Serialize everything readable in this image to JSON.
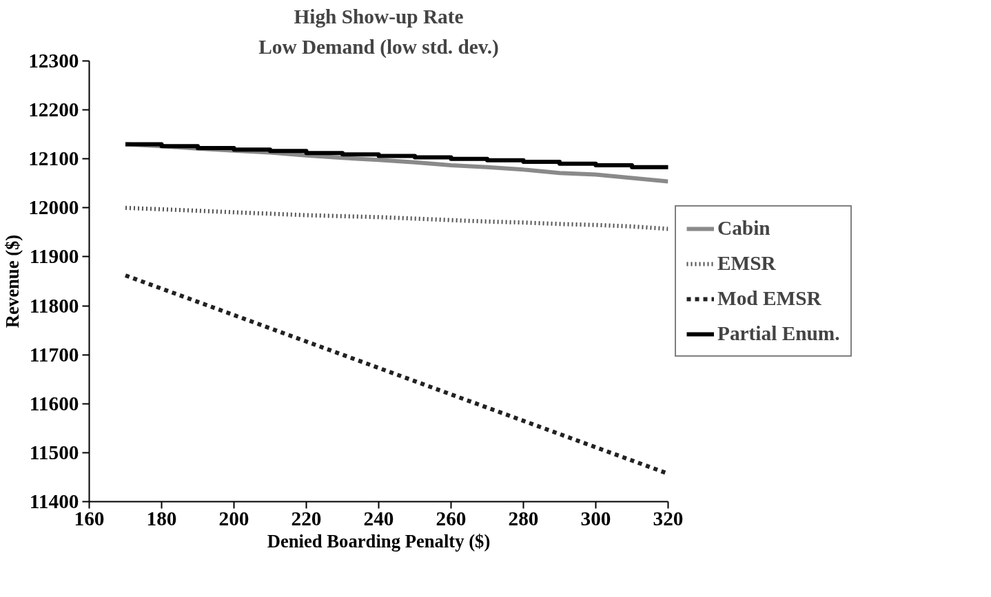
{
  "chart_data": {
    "type": "line",
    "title": "High Show-up Rate",
    "subtitle": "Low Demand (low std. dev.)",
    "xlabel": "Denied Boarding Penalty ($)",
    "ylabel": "Revenue ($)",
    "x": [
      170,
      180,
      190,
      200,
      210,
      220,
      230,
      240,
      250,
      260,
      270,
      280,
      290,
      300,
      310,
      320
    ],
    "series": [
      {
        "name": "Cabin",
        "color": "#8a8a8a",
        "line_style": "solid",
        "values": [
          12130,
          12126,
          12121,
          12117,
          12113,
          12107,
          12102,
          12098,
          12093,
          12087,
          12083,
          12078,
          12071,
          12068,
          12061,
          12054
        ]
      },
      {
        "name": "EMSR",
        "color": "#555555",
        "line_style": "dotted",
        "values": [
          12000,
          11997,
          11994,
          11991,
          11988,
          11985,
          11983,
          11981,
          11978,
          11975,
          11972,
          11970,
          11967,
          11965,
          11962,
          11957
        ]
      },
      {
        "name": "Mod EMSR",
        "color": "#222222",
        "line_style": "dashed",
        "values": [
          11862,
          11835,
          11808,
          11781,
          11754,
          11727,
          11700,
          11673,
          11646,
          11619,
          11592,
          11565,
          11538,
          11511,
          11484,
          11457
        ]
      },
      {
        "name": "Partial Enum.",
        "type": "step",
        "color": "#000000",
        "line_style": "solid",
        "values": [
          12130,
          12126,
          12122,
          12119,
          12116,
          12112,
          12109,
          12106,
          12103,
          12100,
          12097,
          12094,
          12090,
          12087,
          12083,
          12079
        ]
      }
    ],
    "xlim": [
      160,
      320
    ],
    "xticks": [
      160,
      180,
      200,
      220,
      240,
      260,
      280,
      300,
      320
    ],
    "ylim": [
      11400,
      12300
    ],
    "yticks": [
      11400,
      11500,
      11600,
      11700,
      11800,
      11900,
      12000,
      12100,
      12200,
      12300
    ],
    "grid": false,
    "legend": "right"
  }
}
